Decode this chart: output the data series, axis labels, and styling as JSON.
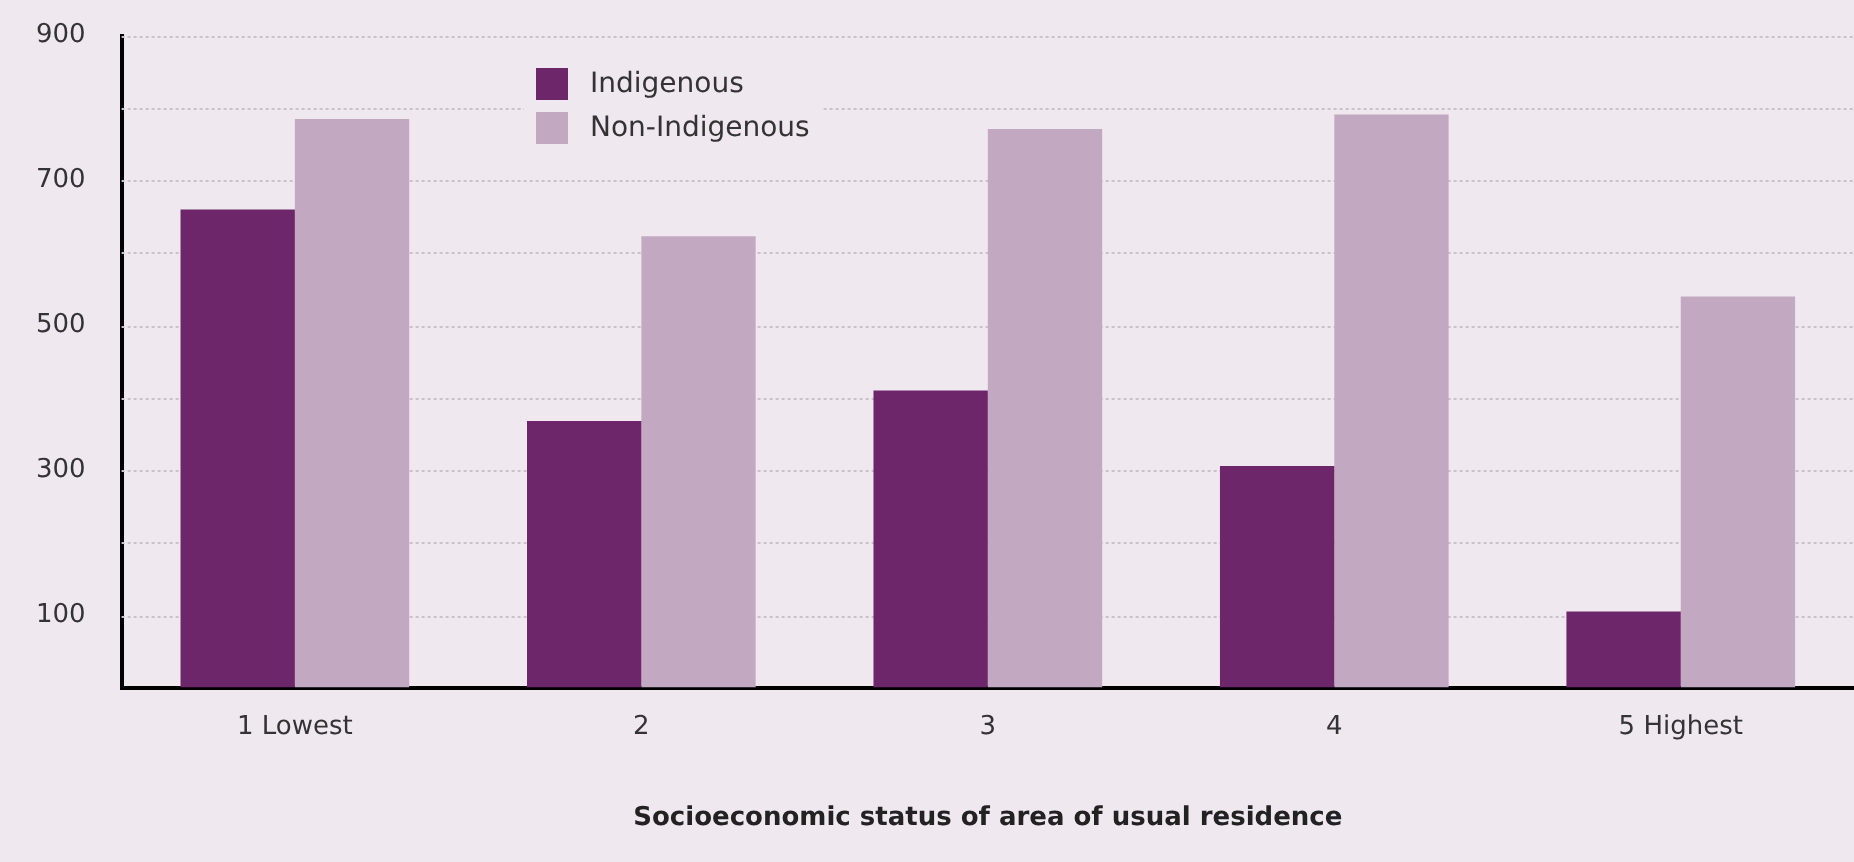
{
  "chart_data": {
    "type": "bar",
    "xlabel": "Socioeconomic status of area of usual residence",
    "categories": [
      "1 Lowest",
      "2",
      "3",
      "4",
      "5 Highest"
    ],
    "series": [
      {
        "name": "Indigenous",
        "color": "#6d266a",
        "values": [
          660,
          368,
          410,
          306,
          105
        ]
      },
      {
        "name": "Non-Indigenous",
        "color": "#c3a8c2",
        "values": [
          785,
          623,
          771,
          791,
          540
        ]
      }
    ],
    "ylim": [
      0,
      900
    ],
    "yticks": [
      {
        "value": 0,
        "label": null
      },
      100,
      {
        "value": 200,
        "label": null
      },
      300,
      {
        "value": 400,
        "label": null
      },
      500,
      {
        "value": 600,
        "label": null
      },
      700,
      {
        "value": 800,
        "label": null
      },
      900
    ],
    "grid": "y",
    "legend": "top"
  }
}
